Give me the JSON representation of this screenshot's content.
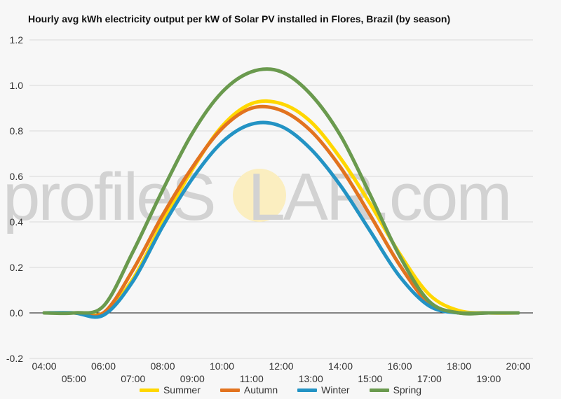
{
  "chart_data": {
    "type": "line",
    "title": "Hourly avg kWh electricity output per kW of Solar PV installed in Flores, Brazil (by season)",
    "xlabel": "",
    "ylabel": "",
    "x": [
      "04:00",
      "05:00",
      "06:00",
      "07:00",
      "08:00",
      "09:00",
      "10:00",
      "11:00",
      "12:00",
      "13:00",
      "14:00",
      "15:00",
      "16:00",
      "17:00",
      "18:00",
      "19:00",
      "20:00"
    ],
    "ylim": [
      -0.2,
      1.2
    ],
    "yticks": [
      "-0.2",
      "0.0",
      "0.2",
      "0.4",
      "0.6",
      "0.8",
      "1.0",
      "1.2"
    ],
    "grid": true,
    "legend": "bottom",
    "series": [
      {
        "name": "Summer",
        "color": "#ffd700",
        "values": [
          0,
          0,
          0,
          0.15,
          0.4,
          0.63,
          0.82,
          0.92,
          0.92,
          0.84,
          0.68,
          0.48,
          0.26,
          0.08,
          0.01,
          0,
          0
        ]
      },
      {
        "name": "Autumn",
        "color": "#e2731f",
        "values": [
          0,
          0,
          0,
          0.19,
          0.43,
          0.64,
          0.81,
          0.9,
          0.89,
          0.8,
          0.64,
          0.43,
          0.21,
          0.04,
          0,
          0,
          0
        ]
      },
      {
        "name": "Winter",
        "color": "#2393c4",
        "values": [
          0,
          0,
          -0.01,
          0.14,
          0.38,
          0.59,
          0.75,
          0.83,
          0.82,
          0.72,
          0.56,
          0.36,
          0.16,
          0.03,
          0,
          0,
          0
        ]
      },
      {
        "name": "Spring",
        "color": "#6a9a4e",
        "values": [
          0,
          0,
          0.03,
          0.27,
          0.54,
          0.79,
          0.97,
          1.06,
          1.06,
          0.96,
          0.78,
          0.52,
          0.25,
          0.05,
          0,
          0,
          0
        ]
      }
    ]
  },
  "watermark": {
    "left": "profile",
    "middle": "S",
    "right": "LAR.com",
    "sun_color": "#fbeec0"
  }
}
